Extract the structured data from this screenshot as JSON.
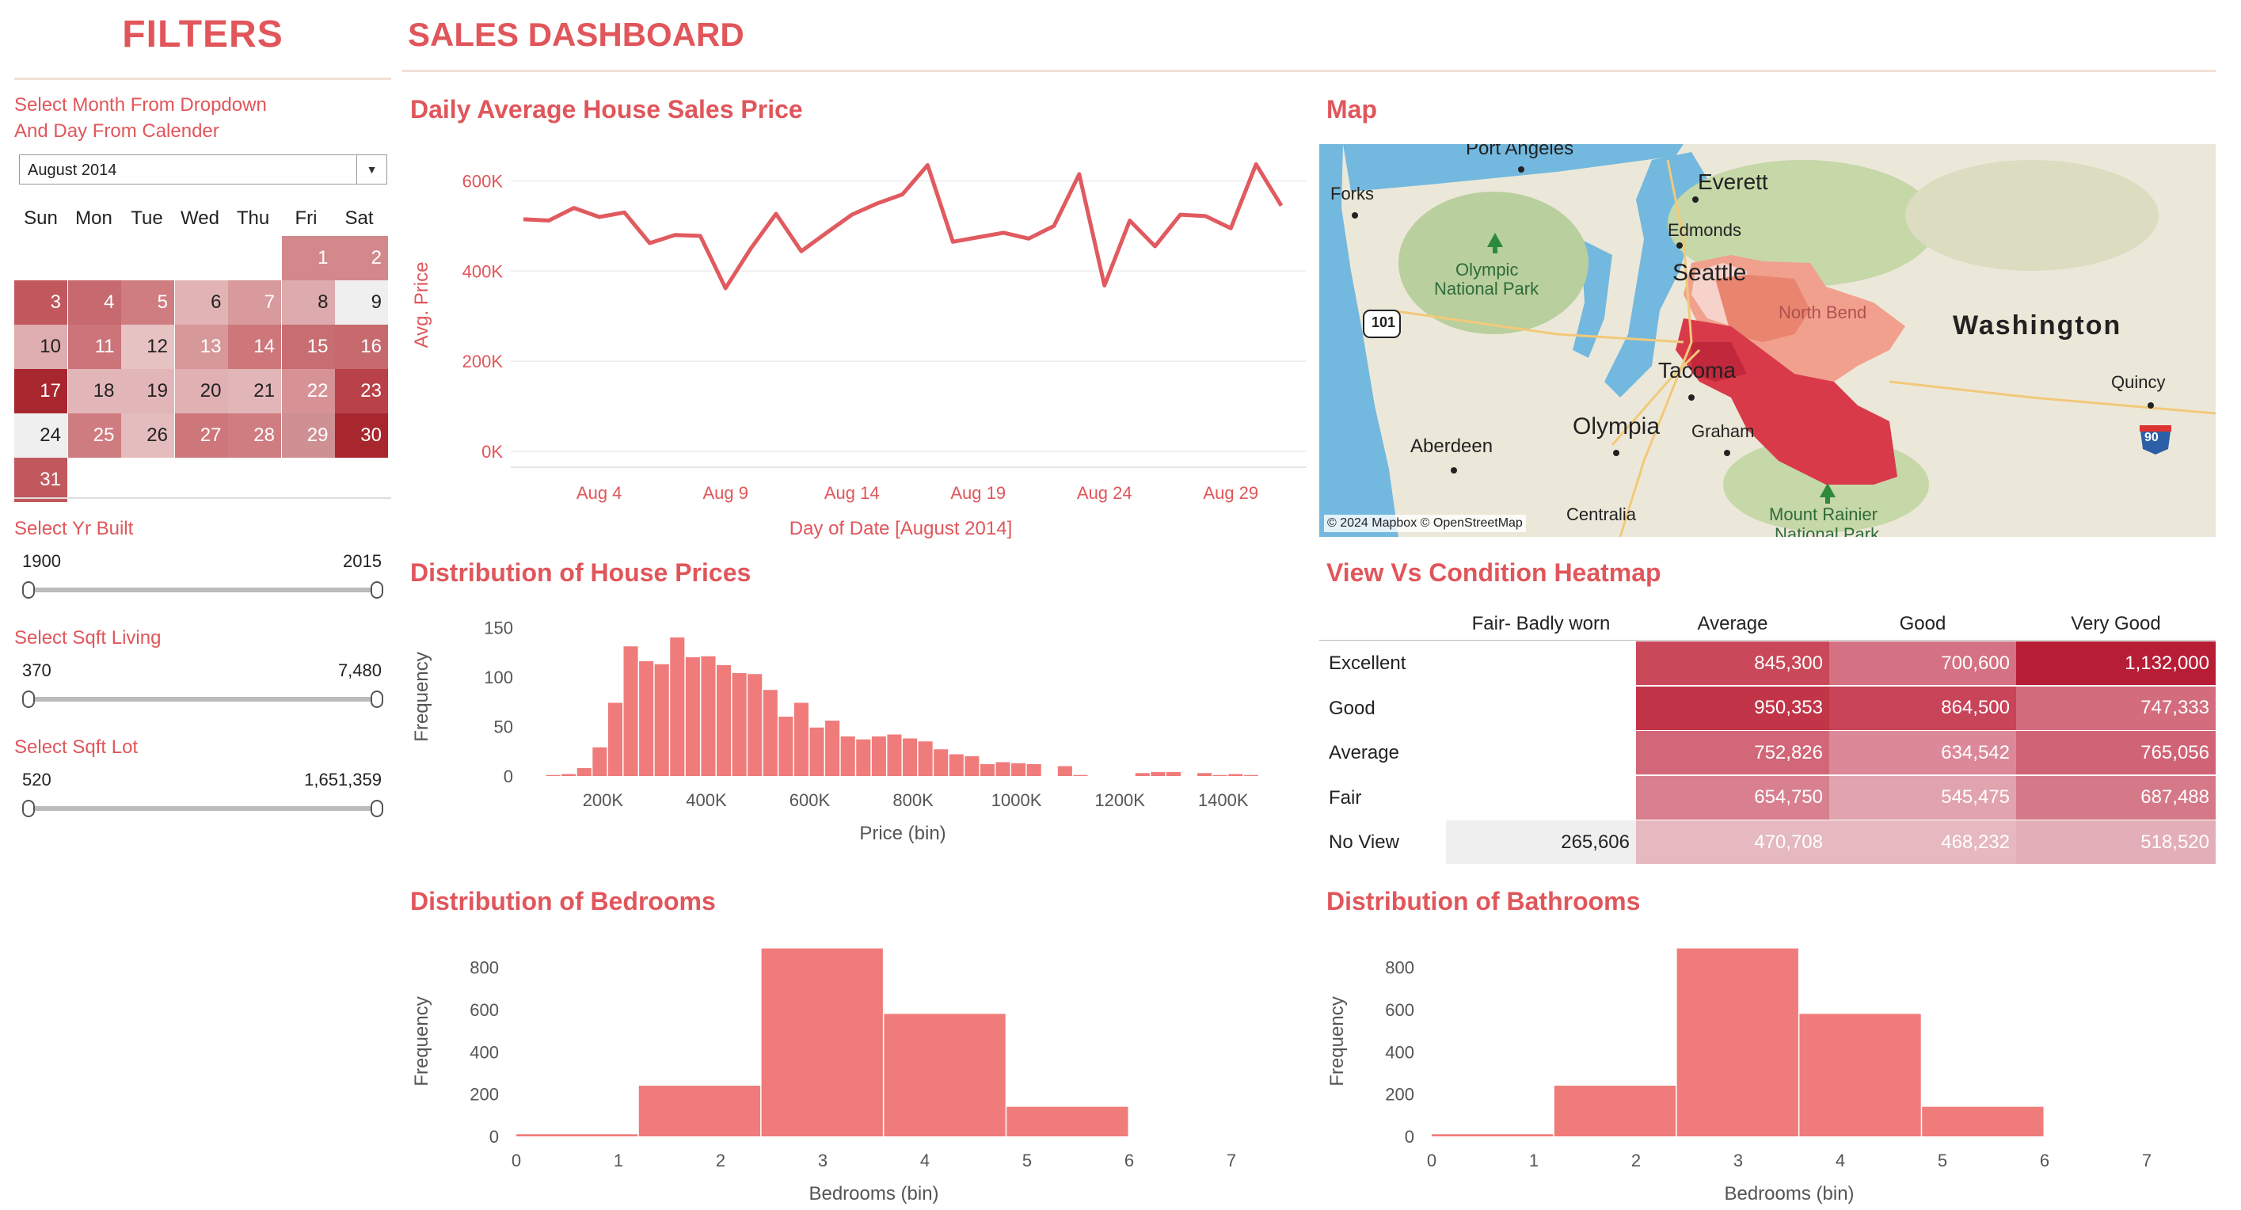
{
  "filters": {
    "title": "FILTERS",
    "month_label_line1": "Select Month From Dropdown",
    "month_label_line2": "And Day From Calender",
    "month_value": "August 2014",
    "weekdays": [
      "Sun",
      "Mon",
      "Tue",
      "Wed",
      "Thu",
      "Fri",
      "Sat"
    ],
    "days": [
      {
        "day": "1",
        "col": 5,
        "row": 0,
        "color": "#d3898c"
      },
      {
        "day": "2",
        "col": 6,
        "row": 0,
        "color": "#d3898c"
      },
      {
        "day": "3",
        "col": 0,
        "row": 1,
        "color": "#c0585d"
      },
      {
        "day": "4",
        "col": 1,
        "row": 1,
        "color": "#c76a6f"
      },
      {
        "day": "5",
        "col": 2,
        "row": 1,
        "color": "#d07d81"
      },
      {
        "day": "6",
        "col": 3,
        "row": 1,
        "color": "#e1b3b5"
      },
      {
        "day": "7",
        "col": 4,
        "row": 1,
        "color": "#d89a9d"
      },
      {
        "day": "8",
        "col": 5,
        "row": 1,
        "color": "#ddaaad"
      },
      {
        "day": "9",
        "col": 6,
        "row": 1,
        "color": "#efefef"
      },
      {
        "day": "10",
        "col": 0,
        "row": 2,
        "color": "#deadaf"
      },
      {
        "day": "11",
        "col": 1,
        "row": 2,
        "color": "#cb7479"
      },
      {
        "day": "12",
        "col": 2,
        "row": 2,
        "color": "#e7c2c3"
      },
      {
        "day": "13",
        "col": 3,
        "row": 2,
        "color": "#d7989a"
      },
      {
        "day": "14",
        "col": 4,
        "row": 2,
        "color": "#cd777b"
      },
      {
        "day": "15",
        "col": 5,
        "row": 2,
        "color": "#c86d72"
      },
      {
        "day": "16",
        "col": 6,
        "row": 2,
        "color": "#c66a6e"
      },
      {
        "day": "17",
        "col": 0,
        "row": 3,
        "color": "#a8262e"
      },
      {
        "day": "18",
        "col": 1,
        "row": 3,
        "color": "#e2b6b8"
      },
      {
        "day": "19",
        "col": 2,
        "row": 3,
        "color": "#e2b6b8"
      },
      {
        "day": "20",
        "col": 3,
        "row": 3,
        "color": "#e0b0b2"
      },
      {
        "day": "21",
        "col": 4,
        "row": 3,
        "color": "#e2b6b8"
      },
      {
        "day": "22",
        "col": 5,
        "row": 3,
        "color": "#d79296"
      },
      {
        "day": "23",
        "col": 6,
        "row": 3,
        "color": "#b94148"
      },
      {
        "day": "24",
        "col": 0,
        "row": 4,
        "color": "#efefef"
      },
      {
        "day": "25",
        "col": 1,
        "row": 4,
        "color": "#cf7c80"
      },
      {
        "day": "26",
        "col": 2,
        "row": 4,
        "color": "#e4bcbe"
      },
      {
        "day": "27",
        "col": 3,
        "row": 4,
        "color": "#cd777b"
      },
      {
        "day": "28",
        "col": 4,
        "row": 4,
        "color": "#d07d81"
      },
      {
        "day": "29",
        "col": 5,
        "row": 4,
        "color": "#ce9093"
      },
      {
        "day": "30",
        "col": 6,
        "row": 4,
        "color": "#a8262e"
      },
      {
        "day": "31",
        "col": 0,
        "row": 5,
        "color": "#c0585d"
      }
    ],
    "sliders": [
      {
        "label": "Select Yr Built",
        "min": "1900",
        "max": "2015"
      },
      {
        "label": "Select Sqft Living",
        "min": "370",
        "max": "7,480"
      },
      {
        "label": "Select Sqft Lot",
        "min": "520",
        "max": "1,651,359"
      }
    ]
  },
  "dashboard": {
    "title": "SALES DASHBOARD",
    "line_title": "Daily Average House Sales Price",
    "map_title": "Map",
    "dist_prices_title": "Distribution of House Prices",
    "heatmap_title": "View Vs Condition Heatmap",
    "bedrooms_title": "Distribution of Bedrooms",
    "bathrooms_title": "Distribution of Bathrooms"
  },
  "map": {
    "labels": [
      "Port Angeles",
      "Everett",
      "Forks",
      "Edmonds",
      "Olympic",
      "National Park",
      "Seattle",
      "North Bend",
      "Washington",
      "101",
      "Tacoma",
      "Quincy",
      "Olympia",
      "Aberdeen",
      "Graham",
      "90",
      "Centralia",
      "Mount Rainier",
      "National Park"
    ],
    "attribution": "© 2024 Mapbox © OpenStreetMap"
  },
  "chart_data": [
    {
      "type": "line",
      "title": "Daily Average House Sales Price",
      "xlabel": "Day of Date [August 2014]",
      "ylabel": "Avg. Price",
      "x_tick_labels": [
        "Aug 4",
        "Aug 9",
        "Aug 14",
        "Aug 19",
        "Aug 24",
        "Aug 29"
      ],
      "x_tick_days": [
        4,
        9,
        14,
        19,
        24,
        29
      ],
      "y_tick_labels": [
        "600K",
        "400K",
        "200K",
        "0K"
      ],
      "y_tick_values": [
        600000,
        400000,
        200000,
        0
      ],
      "ylim": [
        0,
        650000
      ],
      "xlim": [
        0.5,
        32
      ],
      "x": [
        1,
        2,
        3,
        4,
        5,
        6,
        7,
        8,
        9,
        10,
        11,
        12,
        13,
        14,
        15,
        16,
        17,
        18,
        19,
        20,
        21,
        22,
        23,
        24,
        25,
        26,
        27,
        28,
        29,
        30,
        31
      ],
      "values": [
        515000,
        512000,
        540000,
        520000,
        530000,
        462000,
        480000,
        478000,
        362000,
        450000,
        527000,
        444000,
        485000,
        525000,
        550000,
        570000,
        635000,
        465000,
        475000,
        485000,
        472000,
        500000,
        615000,
        368000,
        512000,
        455000,
        525000,
        522000,
        495000,
        637000,
        545000
      ]
    },
    {
      "type": "bar",
      "title": "Distribution of House Prices",
      "xlabel": "Price (bin)",
      "ylabel": "Frequency",
      "x_tick_labels": [
        "200K",
        "400K",
        "600K",
        "800K",
        "1000K",
        "1200K",
        "1400K"
      ],
      "x_tick_values": [
        200000,
        400000,
        600000,
        800000,
        1000000,
        1200000,
        1400000
      ],
      "y_tick_labels": [
        "150",
        "100",
        "50",
        "0"
      ],
      "y_tick_values": [
        150,
        100,
        50,
        0
      ],
      "ylim": [
        0,
        160
      ],
      "xlim": [
        60000,
        1500000
      ],
      "bin_width": 30000,
      "bin_starts": [
        90000,
        120000,
        150000,
        180000,
        210000,
        240000,
        270000,
        300000,
        330000,
        360000,
        390000,
        420000,
        450000,
        480000,
        510000,
        540000,
        570000,
        600000,
        630000,
        660000,
        690000,
        720000,
        750000,
        780000,
        810000,
        840000,
        870000,
        900000,
        930000,
        960000,
        990000,
        1020000,
        1050000,
        1080000,
        1110000,
        1140000,
        1170000,
        1200000,
        1230000,
        1260000,
        1290000,
        1320000,
        1350000,
        1380000,
        1410000,
        1440000
      ],
      "values": [
        1,
        2,
        8,
        29,
        74,
        131,
        116,
        113,
        140,
        120,
        121,
        112,
        104,
        103,
        87,
        60,
        74,
        49,
        56,
        40,
        37,
        40,
        42,
        38,
        35,
        27,
        22,
        20,
        12,
        14,
        13,
        12,
        0,
        10,
        1,
        0,
        0,
        0,
        3,
        4,
        4,
        0,
        3,
        1,
        2,
        1
      ]
    },
    {
      "type": "bar",
      "title": "Distribution of Bedrooms",
      "xlabel": "Bedrooms (bin)",
      "ylabel": "Frequency",
      "x_tick_labels": [
        "0",
        "1",
        "2",
        "3",
        "4",
        "5",
        "6",
        "7"
      ],
      "y_tick_labels": [
        "800",
        "600",
        "400",
        "200",
        "0"
      ],
      "y_tick_values": [
        800,
        600,
        400,
        200,
        0
      ],
      "ylim": [
        0,
        900
      ],
      "bin_starts": [
        0,
        1.2,
        2.4,
        3.6,
        4.8
      ],
      "bin_width": 1.2,
      "values": [
        10,
        240,
        890,
        580,
        140
      ]
    },
    {
      "type": "bar",
      "title": "Distribution of Bathrooms",
      "xlabel": "Bedrooms (bin)",
      "ylabel": "Frequency",
      "x_tick_labels": [
        "0",
        "1",
        "2",
        "3",
        "4",
        "5",
        "6",
        "7"
      ],
      "y_tick_labels": [
        "800",
        "600",
        "400",
        "200",
        "0"
      ],
      "y_tick_values": [
        800,
        600,
        400,
        200,
        0
      ],
      "ylim": [
        0,
        900
      ],
      "bin_starts": [
        0,
        1.2,
        2.4,
        3.6,
        4.8
      ],
      "bin_width": 1.2,
      "values": [
        10,
        240,
        890,
        580,
        140
      ]
    },
    {
      "type": "heatmap",
      "title": "View Vs Condition Heatmap",
      "columns": [
        "Fair- Badly worn",
        "Average",
        "Good",
        "Very Good"
      ],
      "rows": [
        "Excellent",
        "Good",
        "Average",
        "Fair",
        "No View"
      ],
      "cells": [
        [
          {
            "v": "",
            "c": "#ffffff"
          },
          {
            "v": "845,300",
            "c": "#c9485a"
          },
          {
            "v": "700,600",
            "c": "#d47182"
          },
          {
            "v": "1,132,000",
            "c": "#b71d35"
          }
        ],
        [
          {
            "v": "",
            "c": "#ffffff"
          },
          {
            "v": "950,353",
            "c": "#c23549"
          },
          {
            "v": "864,500",
            "c": "#c84458"
          },
          {
            "v": "747,333",
            "c": "#d36c7d"
          }
        ],
        [
          {
            "v": "",
            "c": "#ffffff"
          },
          {
            "v": "752,826",
            "c": "#d16779"
          },
          {
            "v": "634,542",
            "c": "#db8998"
          },
          {
            "v": "765,056",
            "c": "#d06476"
          }
        ],
        [
          {
            "v": "",
            "c": "#ffffff"
          },
          {
            "v": "654,750",
            "c": "#d8808f"
          },
          {
            "v": "545,475",
            "c": "#e1a3ae"
          },
          {
            "v": "687,488",
            "c": "#d57888"
          }
        ],
        [
          {
            "v": "265,606",
            "c": "#efefef"
          },
          {
            "v": "470,708",
            "c": "#e6b8c0"
          },
          {
            "v": "468,232",
            "c": "#e6b8c0"
          },
          {
            "v": "518,520",
            "c": "#e3aeb8"
          }
        ]
      ]
    }
  ],
  "colors": {
    "accent": "#e0565b",
    "line": "#e05a5f",
    "bar": "#f07b7b"
  }
}
